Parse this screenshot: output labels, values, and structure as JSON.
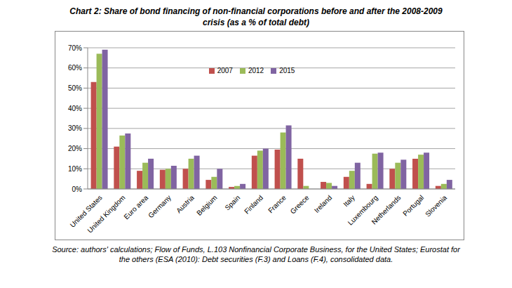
{
  "chart_data": {
    "type": "bar",
    "title": "Chart 2: Share of bond financing of non-financial corporations before and after the 2008-2009 crisis (as a % of total debt)",
    "source": "Source: authors' calculations; Flow of Funds, L.103 Nonfinancial Corporate Business, for the United States; Eurostat for the others (ESA (2010): Debt securities (F.3) and Loans (F.4), consolidated data.",
    "categories": [
      "United States",
      "United Kingdom",
      "Euro area",
      "Germany",
      "Austria",
      "Belgium",
      "Spain",
      "Finland",
      "France",
      "Greece",
      "Ireland",
      "Italy",
      "Luxembourg",
      "Netherlands",
      "Portugal",
      "Slovenia"
    ],
    "series": [
      {
        "name": "2007",
        "color": "#c0504d",
        "values": [
          53,
          21,
          9,
          9.5,
          10,
          4.5,
          1,
          16.5,
          19.5,
          15,
          3.5,
          6,
          2.5,
          10,
          15,
          1.5
        ]
      },
      {
        "name": "2012",
        "color": "#9bbb59",
        "values": [
          67,
          26.5,
          13,
          10,
          15,
          6,
          1.5,
          19,
          28,
          1.5,
          3,
          9,
          17.5,
          13,
          17,
          2.5
        ]
      },
      {
        "name": "2015",
        "color": "#8064a2",
        "values": [
          69,
          27.5,
          15,
          11.5,
          16.5,
          10,
          2.5,
          20,
          31.5,
          0,
          1.5,
          13,
          18,
          14.5,
          18,
          4.5
        ]
      }
    ],
    "ylim": [
      0,
      70
    ],
    "yticks": [
      {
        "value": 0,
        "label": "0%"
      },
      {
        "value": 10,
        "label": "10%"
      },
      {
        "value": 20,
        "label": "20%"
      },
      {
        "value": 30,
        "label": "30%"
      },
      {
        "value": 40,
        "label": "40%"
      },
      {
        "value": 50,
        "label": "50%"
      },
      {
        "value": 60,
        "label": "60%"
      },
      {
        "value": 70,
        "label": "70%"
      }
    ],
    "grid": true,
    "legend": "top"
  }
}
